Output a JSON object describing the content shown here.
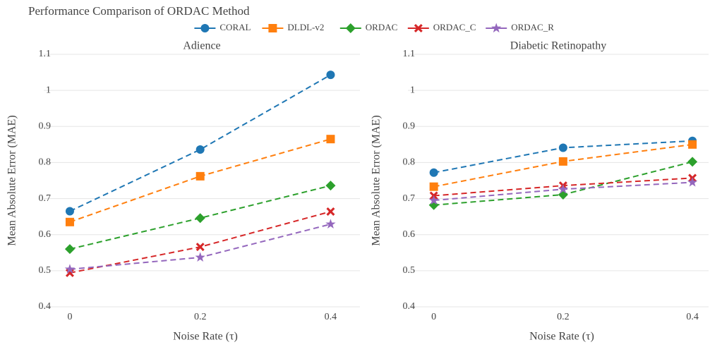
{
  "title": "Performance Comparison of ORDAC Method",
  "chart_data": [
    {
      "type": "line",
      "title": "Adience",
      "xlabel": "Noise Rate (τ)",
      "ylabel": "Mean Absolute Error (MAE)",
      "x": [
        0,
        0.2,
        0.4
      ],
      "xlim": [
        -0.04,
        0.445
      ],
      "xticks": [
        0,
        0.2,
        0.4
      ],
      "ylim": [
        0.4,
        1.1
      ],
      "yticks": [
        0.4,
        0.5,
        0.6,
        0.7,
        0.8,
        0.9,
        1,
        1.1
      ],
      "grid": true,
      "series": [
        {
          "name": "CORAL",
          "color": "#1f77b4",
          "marker": "circle",
          "values": [
            0.665,
            0.836,
            1.043
          ]
        },
        {
          "name": "DLDL-v2",
          "color": "#ff7f0e",
          "marker": "square",
          "values": [
            0.635,
            0.762,
            0.865
          ]
        },
        {
          "name": "ORDAC",
          "color": "#2ca02c",
          "marker": "diamond",
          "values": [
            0.56,
            0.646,
            0.736
          ]
        },
        {
          "name": "ORDAC_C",
          "color": "#d62728",
          "marker": "x",
          "values": [
            0.494,
            0.566,
            0.664
          ]
        },
        {
          "name": "ORDAC_R",
          "color": "#9467bd",
          "marker": "star",
          "values": [
            0.504,
            0.537,
            0.629
          ]
        }
      ]
    },
    {
      "type": "line",
      "title": "Diabetic Retinopathy",
      "xlabel": "Noise Rate (τ)",
      "ylabel": "Mean Absolute Error (MAE)",
      "x": [
        0,
        0.2,
        0.4
      ],
      "xlim": [
        -0.04,
        0.425
      ],
      "xticks": [
        0,
        0.2,
        0.4
      ],
      "ylim": [
        0.4,
        1.1
      ],
      "yticks": [
        0.4,
        0.5,
        0.6,
        0.7,
        0.8,
        0.9,
        1,
        1.1
      ],
      "grid": true,
      "series": [
        {
          "name": "CORAL",
          "color": "#1f77b4",
          "marker": "circle",
          "values": [
            0.772,
            0.841,
            0.86
          ]
        },
        {
          "name": "DLDL-v2",
          "color": "#ff7f0e",
          "marker": "square",
          "values": [
            0.733,
            0.803,
            0.85
          ]
        },
        {
          "name": "ORDAC",
          "color": "#2ca02c",
          "marker": "diamond",
          "values": [
            0.682,
            0.711,
            0.802
          ]
        },
        {
          "name": "ORDAC_C",
          "color": "#d62728",
          "marker": "x",
          "values": [
            0.708,
            0.736,
            0.757
          ]
        },
        {
          "name": "ORDAC_R",
          "color": "#9467bd",
          "marker": "star",
          "values": [
            0.695,
            0.726,
            0.745
          ]
        }
      ]
    }
  ]
}
